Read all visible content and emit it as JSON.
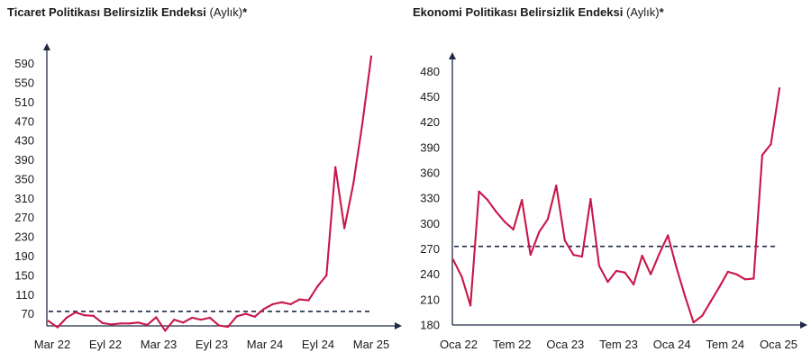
{
  "colors": {
    "line": "#c8174a",
    "reference": "#1f2a44",
    "axis": "#1f2a44"
  },
  "chart_data": [
    {
      "type": "line",
      "title": "Ticaret Politikası Belirsizlik Endeksi",
      "title_suffix": "(Aylık)",
      "title_mark": "*",
      "yticks": [
        70,
        110,
        150,
        190,
        230,
        270,
        310,
        350,
        390,
        430,
        470,
        510,
        550,
        590
      ],
      "ylim": [
        45,
        610
      ],
      "x_tick_labels": [
        "Mar 22",
        "Eyl 22",
        "Mar 23",
        "Eyl 23",
        "Mar 24",
        "Eyl 24",
        "Mar 25"
      ],
      "reference_line": 75,
      "series": [
        {
          "values": [
            55,
            42,
            62,
            73,
            67,
            66,
            51,
            48,
            50,
            50,
            52,
            47,
            63,
            35,
            58,
            52,
            62,
            58,
            62,
            46,
            43,
            65,
            70,
            64,
            80,
            90,
            94,
            90,
            100,
            98,
            127,
            150,
            375,
            248,
            340,
            465,
            605
          ]
        }
      ]
    },
    {
      "type": "line",
      "title": "Ekonomi Politikası Belirsizlik Endeksi",
      "title_suffix": "(Aylık)",
      "title_mark": "*",
      "yticks": [
        180,
        210,
        240,
        270,
        300,
        330,
        360,
        390,
        420,
        450,
        480
      ],
      "ylim": [
        180,
        490
      ],
      "x_tick_labels": [
        "Oca 22",
        "Tem 22",
        "Oca 23",
        "Tem 23",
        "Oca 24",
        "Tem 24",
        "Oca 25"
      ],
      "reference_line": 273,
      "series": [
        {
          "values": [
            257,
            237,
            203,
            338,
            328,
            314,
            302,
            293,
            328,
            263,
            290,
            305,
            345,
            280,
            263,
            261,
            329,
            250,
            231,
            244,
            242,
            228,
            262,
            240,
            264,
            286,
            248,
            214,
            183,
            191,
            208,
            225,
            243,
            240,
            234,
            235,
            381,
            394,
            460
          ]
        }
      ]
    }
  ]
}
